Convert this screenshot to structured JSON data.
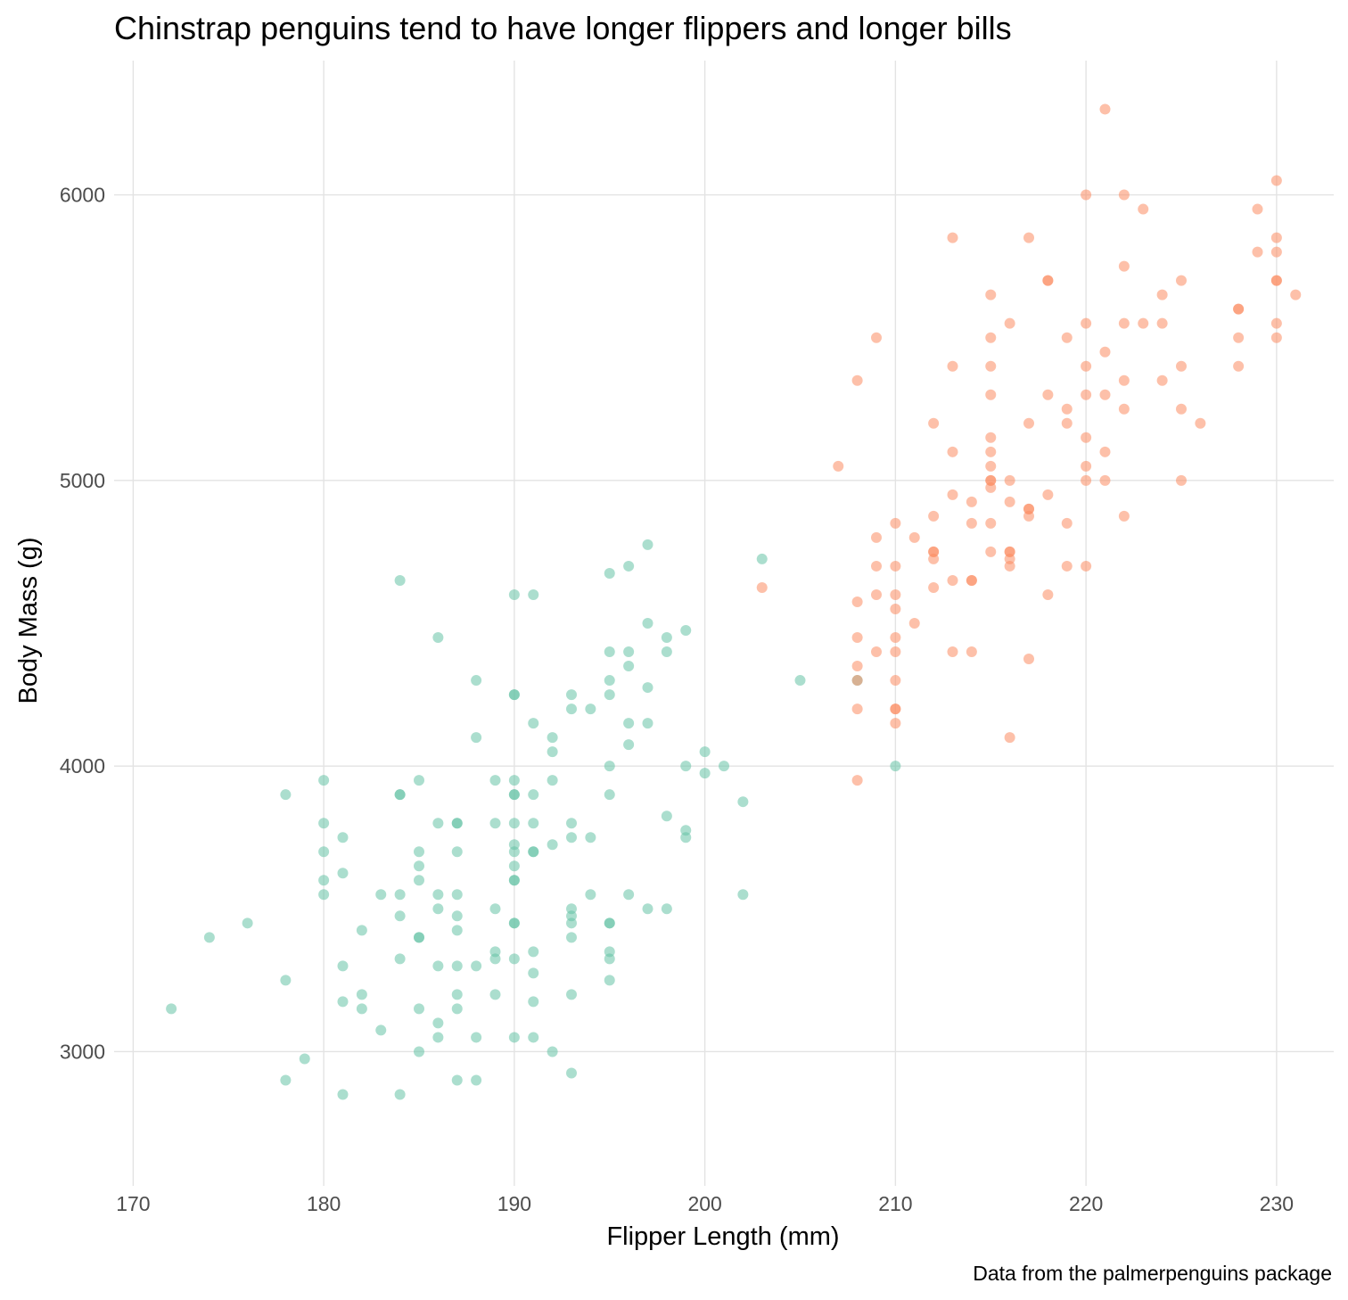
{
  "chart_data": {
    "type": "scatter",
    "title": "Chinstrap penguins tend to have longer flippers and longer bills",
    "xlabel": "Flipper Length (mm)",
    "ylabel": "Body Mass (g)",
    "caption": "Data from the palmerpenguins package",
    "xlim": [
      169,
      233
    ],
    "ylim": [
      2530,
      6470
    ],
    "xticks": [
      "170",
      "180",
      "190",
      "200",
      "210",
      "220",
      "230"
    ],
    "yticks": [
      "3000",
      "4000",
      "5000",
      "6000"
    ],
    "grid": true,
    "point_alpha": 0.55,
    "series": [
      {
        "color": "#66c2a5",
        "points": [
          [
            172,
            3150
          ],
          [
            174,
            3400
          ],
          [
            176,
            3450
          ],
          [
            178,
            3900
          ],
          [
            178,
            3250
          ],
          [
            178,
            2900
          ],
          [
            179,
            2975
          ],
          [
            180,
            3950
          ],
          [
            180,
            3800
          ],
          [
            180,
            3700
          ],
          [
            180,
            3600
          ],
          [
            180,
            3550
          ],
          [
            181,
            3750
          ],
          [
            181,
            3625
          ],
          [
            181,
            3300
          ],
          [
            181,
            3175
          ],
          [
            181,
            2850
          ],
          [
            182,
            3425
          ],
          [
            182,
            3200
          ],
          [
            182,
            3150
          ],
          [
            183,
            3550
          ],
          [
            183,
            3075
          ],
          [
            184,
            4650
          ],
          [
            184,
            3900
          ],
          [
            184,
            3900
          ],
          [
            184,
            3550
          ],
          [
            184,
            3475
          ],
          [
            184,
            3325
          ],
          [
            184,
            2850
          ],
          [
            185,
            3950
          ],
          [
            185,
            3700
          ],
          [
            185,
            3650
          ],
          [
            185,
            3600
          ],
          [
            185,
            3400
          ],
          [
            185,
            3400
          ],
          [
            185,
            3150
          ],
          [
            185,
            3000
          ],
          [
            186,
            4450
          ],
          [
            186,
            3800
          ],
          [
            186,
            3550
          ],
          [
            186,
            3500
          ],
          [
            186,
            3300
          ],
          [
            186,
            3100
          ],
          [
            186,
            3050
          ],
          [
            187,
            3800
          ],
          [
            187,
            3800
          ],
          [
            187,
            3700
          ],
          [
            187,
            3550
          ],
          [
            187,
            3475
          ],
          [
            187,
            3425
          ],
          [
            187,
            3300
          ],
          [
            187,
            3200
          ],
          [
            187,
            3150
          ],
          [
            187,
            2900
          ],
          [
            188,
            4300
          ],
          [
            188,
            4100
          ],
          [
            188,
            3300
          ],
          [
            188,
            3050
          ],
          [
            188,
            2900
          ],
          [
            189,
            3950
          ],
          [
            189,
            3800
          ],
          [
            189,
            3500
          ],
          [
            189,
            3350
          ],
          [
            189,
            3325
          ],
          [
            189,
            3200
          ],
          [
            190,
            4600
          ],
          [
            190,
            4250
          ],
          [
            190,
            4250
          ],
          [
            190,
            3950
          ],
          [
            190,
            3900
          ],
          [
            190,
            3900
          ],
          [
            190,
            3800
          ],
          [
            190,
            3725
          ],
          [
            190,
            3700
          ],
          [
            190,
            3650
          ],
          [
            190,
            3600
          ],
          [
            190,
            3600
          ],
          [
            190,
            3450
          ],
          [
            190,
            3450
          ],
          [
            190,
            3325
          ],
          [
            190,
            3050
          ],
          [
            191,
            4600
          ],
          [
            191,
            4150
          ],
          [
            191,
            3900
          ],
          [
            191,
            3800
          ],
          [
            191,
            3700
          ],
          [
            191,
            3700
          ],
          [
            191,
            3350
          ],
          [
            191,
            3275
          ],
          [
            191,
            3175
          ],
          [
            191,
            3050
          ],
          [
            192,
            4100
          ],
          [
            192,
            4050
          ],
          [
            192,
            3950
          ],
          [
            192,
            3725
          ],
          [
            192,
            3000
          ],
          [
            193,
            4250
          ],
          [
            193,
            4200
          ],
          [
            193,
            3800
          ],
          [
            193,
            3750
          ],
          [
            193,
            3500
          ],
          [
            193,
            3475
          ],
          [
            193,
            3450
          ],
          [
            193,
            3400
          ],
          [
            193,
            3200
          ],
          [
            193,
            2925
          ],
          [
            194,
            4200
          ],
          [
            194,
            3750
          ],
          [
            194,
            3550
          ],
          [
            195,
            4675
          ],
          [
            195,
            4400
          ],
          [
            195,
            4300
          ],
          [
            195,
            4250
          ],
          [
            195,
            4000
          ],
          [
            195,
            3900
          ],
          [
            195,
            3450
          ],
          [
            195,
            3450
          ],
          [
            195,
            3350
          ],
          [
            195,
            3325
          ],
          [
            195,
            3250
          ],
          [
            196,
            4700
          ],
          [
            196,
            4400
          ],
          [
            196,
            4350
          ],
          [
            196,
            4150
          ],
          [
            196,
            4075
          ],
          [
            196,
            3550
          ],
          [
            197,
            4775
          ],
          [
            197,
            4500
          ],
          [
            197,
            4275
          ],
          [
            197,
            4150
          ],
          [
            197,
            3500
          ],
          [
            198,
            4450
          ],
          [
            198,
            4400
          ],
          [
            198,
            3825
          ],
          [
            198,
            3500
          ],
          [
            199,
            4475
          ],
          [
            199,
            4000
          ],
          [
            199,
            3775
          ],
          [
            199,
            3750
          ],
          [
            200,
            4050
          ],
          [
            200,
            3975
          ],
          [
            201,
            4000
          ],
          [
            202,
            3875
          ],
          [
            202,
            3550
          ],
          [
            203,
            4725
          ],
          [
            205,
            4300
          ],
          [
            208,
            4300
          ],
          [
            210,
            4000
          ]
        ]
      },
      {
        "color": "#fc8d62",
        "points": [
          [
            203,
            4625
          ],
          [
            207,
            5050
          ],
          [
            208,
            5350
          ],
          [
            208,
            4575
          ],
          [
            208,
            4450
          ],
          [
            208,
            4350
          ],
          [
            208,
            4300
          ],
          [
            208,
            4200
          ],
          [
            208,
            3950
          ],
          [
            209,
            5500
          ],
          [
            209,
            4800
          ],
          [
            209,
            4700
          ],
          [
            209,
            4600
          ],
          [
            209,
            4400
          ],
          [
            210,
            4850
          ],
          [
            210,
            4700
          ],
          [
            210,
            4600
          ],
          [
            210,
            4550
          ],
          [
            210,
            4450
          ],
          [
            210,
            4400
          ],
          [
            210,
            4300
          ],
          [
            210,
            4200
          ],
          [
            210,
            4200
          ],
          [
            210,
            4150
          ],
          [
            211,
            4800
          ],
          [
            211,
            4500
          ],
          [
            212,
            5200
          ],
          [
            212,
            4875
          ],
          [
            212,
            4750
          ],
          [
            212,
            4750
          ],
          [
            212,
            4725
          ],
          [
            212,
            4625
          ],
          [
            213,
            5850
          ],
          [
            213,
            5400
          ],
          [
            213,
            5100
          ],
          [
            213,
            4950
          ],
          [
            213,
            4650
          ],
          [
            213,
            4400
          ],
          [
            214,
            4925
          ],
          [
            214,
            4850
          ],
          [
            214,
            4650
          ],
          [
            214,
            4650
          ],
          [
            214,
            4400
          ],
          [
            215,
            5650
          ],
          [
            215,
            5500
          ],
          [
            215,
            5400
          ],
          [
            215,
            5300
          ],
          [
            215,
            5150
          ],
          [
            215,
            5100
          ],
          [
            215,
            5050
          ],
          [
            215,
            5000
          ],
          [
            215,
            5000
          ],
          [
            215,
            4975
          ],
          [
            215,
            4850
          ],
          [
            215,
            4750
          ],
          [
            216,
            5550
          ],
          [
            216,
            5000
          ],
          [
            216,
            4925
          ],
          [
            216,
            4750
          ],
          [
            216,
            4750
          ],
          [
            216,
            4725
          ],
          [
            216,
            4700
          ],
          [
            216,
            4100
          ],
          [
            217,
            5850
          ],
          [
            217,
            5200
          ],
          [
            217,
            4900
          ],
          [
            217,
            4900
          ],
          [
            217,
            4875
          ],
          [
            217,
            4375
          ],
          [
            218,
            5700
          ],
          [
            218,
            5700
          ],
          [
            218,
            5300
          ],
          [
            218,
            4950
          ],
          [
            218,
            4600
          ],
          [
            219,
            5500
          ],
          [
            219,
            5250
          ],
          [
            219,
            5200
          ],
          [
            219,
            4850
          ],
          [
            219,
            4700
          ],
          [
            220,
            6000
          ],
          [
            220,
            5550
          ],
          [
            220,
            5400
          ],
          [
            220,
            5300
          ],
          [
            220,
            5150
          ],
          [
            220,
            5050
          ],
          [
            220,
            5000
          ],
          [
            220,
            4700
          ],
          [
            221,
            6300
          ],
          [
            221,
            5450
          ],
          [
            221,
            5300
          ],
          [
            221,
            5100
          ],
          [
            221,
            5000
          ],
          [
            222,
            6000
          ],
          [
            222,
            5750
          ],
          [
            222,
            5550
          ],
          [
            222,
            5350
          ],
          [
            222,
            5250
          ],
          [
            222,
            4875
          ],
          [
            223,
            5950
          ],
          [
            223,
            5550
          ],
          [
            224,
            5650
          ],
          [
            224,
            5550
          ],
          [
            224,
            5350
          ],
          [
            225,
            5700
          ],
          [
            225,
            5400
          ],
          [
            225,
            5250
          ],
          [
            225,
            5000
          ],
          [
            226,
            5200
          ],
          [
            228,
            5600
          ],
          [
            228,
            5600
          ],
          [
            228,
            5500
          ],
          [
            228,
            5400
          ],
          [
            229,
            5950
          ],
          [
            229,
            5800
          ],
          [
            230,
            6050
          ],
          [
            230,
            5850
          ],
          [
            230,
            5800
          ],
          [
            230,
            5700
          ],
          [
            230,
            5700
          ],
          [
            230,
            5550
          ],
          [
            230,
            5500
          ],
          [
            231,
            5650
          ]
        ]
      }
    ]
  }
}
